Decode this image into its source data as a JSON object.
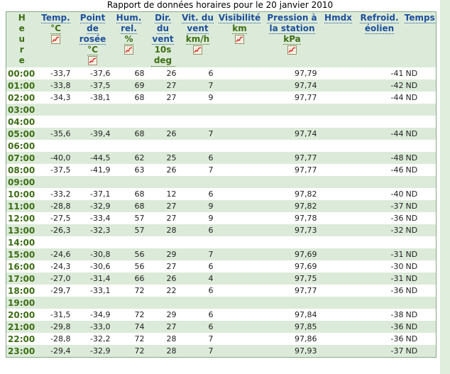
{
  "title": "Rapport de données horaires pour le 20 janvier 2010",
  "colors": {
    "link": "#1d4f9c",
    "unit": "#3d6e14",
    "stripe": "#dcebd9"
  },
  "columns": [
    {
      "label": [
        "H",
        "e",
        "u",
        "r",
        "e"
      ],
      "unit": "",
      "chart": false
    },
    {
      "label": [
        "Temp."
      ],
      "unit": "°C",
      "chart": true
    },
    {
      "label": [
        "Point",
        "de",
        "rosée"
      ],
      "unit": "°C",
      "chart": true
    },
    {
      "label": [
        "Hum.",
        "rel."
      ],
      "unit": "%",
      "chart": true
    },
    {
      "label": [
        "Dir.",
        "du",
        "vent"
      ],
      "unit": "10s deg",
      "chart": false
    },
    {
      "label": [
        "Vit. du",
        "vent"
      ],
      "unit": "km/h",
      "chart": true
    },
    {
      "label": [
        "Visibilité"
      ],
      "unit": "km",
      "chart": true
    },
    {
      "label": [
        "Pression à",
        "la station"
      ],
      "unit": "kPa",
      "chart": true
    },
    {
      "label": [
        "Hmdx"
      ],
      "unit": "",
      "chart": false
    },
    {
      "label": [
        "Refroid.",
        "éolien"
      ],
      "unit": "",
      "chart": false
    },
    {
      "label": [
        "Temps"
      ],
      "unit": "",
      "chart": false
    }
  ],
  "rows": [
    [
      "00:00",
      "-33,7",
      "-37,6",
      "68",
      "26",
      "6",
      "",
      "97,79",
      "",
      "-41",
      "ND"
    ],
    [
      "01:00",
      "-33,8",
      "-37,5",
      "69",
      "27",
      "7",
      "",
      "97,74",
      "",
      "-42",
      "ND"
    ],
    [
      "02:00",
      "-34,3",
      "-38,1",
      "68",
      "27",
      "9",
      "",
      "97,77",
      "",
      "-44",
      "ND"
    ],
    [
      "03:00",
      "",
      "",
      "",
      "",
      "",
      "",
      "",
      "",
      "",
      ""
    ],
    [
      "04:00",
      "",
      "",
      "",
      "",
      "",
      "",
      "",
      "",
      "",
      ""
    ],
    [
      "05:00",
      "-35,6",
      "-39,4",
      "68",
      "26",
      "7",
      "",
      "97,74",
      "",
      "-44",
      "ND"
    ],
    [
      "06:00",
      "",
      "",
      "",
      "",
      "",
      "",
      "",
      "",
      "",
      ""
    ],
    [
      "07:00",
      "-40,0",
      "-44,5",
      "62",
      "25",
      "6",
      "",
      "97,77",
      "",
      "-48",
      "ND"
    ],
    [
      "08:00",
      "-37,5",
      "-41,9",
      "63",
      "26",
      "7",
      "",
      "97,77",
      "",
      "-46",
      "ND"
    ],
    [
      "09:00",
      "",
      "",
      "",
      "",
      "",
      "",
      "",
      "",
      "",
      ""
    ],
    [
      "10:00",
      "-33,2",
      "-37,1",
      "68",
      "12",
      "6",
      "",
      "97,82",
      "",
      "-40",
      "ND"
    ],
    [
      "11:00",
      "-28,8",
      "-32,9",
      "68",
      "27",
      "9",
      "",
      "97,82",
      "",
      "-37",
      "ND"
    ],
    [
      "12:00",
      "-27,5",
      "-33,4",
      "57",
      "27",
      "9",
      "",
      "97,78",
      "",
      "-36",
      "ND"
    ],
    [
      "13:00",
      "-26,3",
      "-32,3",
      "57",
      "28",
      "6",
      "",
      "97,73",
      "",
      "-32",
      "ND"
    ],
    [
      "14:00",
      "",
      "",
      "",
      "",
      "",
      "",
      "",
      "",
      "",
      ""
    ],
    [
      "15:00",
      "-24,6",
      "-30,8",
      "56",
      "29",
      "7",
      "",
      "97,69",
      "",
      "-31",
      "ND"
    ],
    [
      "16:00",
      "-24,3",
      "-30,6",
      "56",
      "27",
      "6",
      "",
      "97,69",
      "",
      "-30",
      "ND"
    ],
    [
      "17:00",
      "-27,0",
      "-31,4",
      "66",
      "26",
      "4",
      "",
      "97,75",
      "",
      "-31",
      "ND"
    ],
    [
      "18:00",
      "-29,7",
      "-33,1",
      "72",
      "22",
      "6",
      "",
      "97,77",
      "",
      "-36",
      "ND"
    ],
    [
      "19:00",
      "",
      "",
      "",
      "",
      "",
      "",
      "",
      "",
      "",
      ""
    ],
    [
      "20:00",
      "-31,5",
      "-34,9",
      "72",
      "29",
      "6",
      "",
      "97,84",
      "",
      "-38",
      "ND"
    ],
    [
      "21:00",
      "-29,8",
      "-33,0",
      "74",
      "27",
      "6",
      "",
      "97,85",
      "",
      "-36",
      "ND"
    ],
    [
      "22:00",
      "-28,8",
      "-32,2",
      "72",
      "28",
      "7",
      "",
      "97,86",
      "",
      "-36",
      "ND"
    ],
    [
      "23:00",
      "-29,4",
      "-32,9",
      "72",
      "28",
      "7",
      "",
      "97,93",
      "",
      "-37",
      "ND"
    ]
  ]
}
